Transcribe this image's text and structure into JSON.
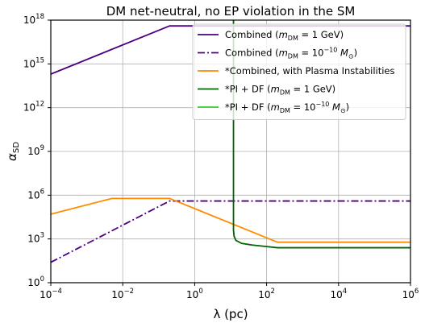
{
  "chart_data": {
    "type": "line",
    "title": "DM net-neutral, no EP violation in the SM",
    "xlabel": "λ (pc)",
    "ylabel": "α",
    "ylabel_subscript": "SD",
    "xscale": "log",
    "yscale": "log",
    "xlim": [
      0.0001,
      1000000
    ],
    "ylim": [
      1,
      1e+18
    ],
    "grid": true,
    "legend_position": "top-right",
    "x_tick_labels": [
      {
        "base": "10",
        "exp": "−4"
      },
      {
        "base": "10",
        "exp": "−2"
      },
      {
        "base": "10",
        "exp": "0"
      },
      {
        "base": "10",
        "exp": "2"
      },
      {
        "base": "10",
        "exp": "4"
      },
      {
        "base": "10",
        "exp": "6"
      }
    ],
    "y_tick_labels": [
      {
        "base": "10",
        "exp": "0"
      },
      {
        "base": "10",
        "exp": "3"
      },
      {
        "base": "10",
        "exp": "6"
      },
      {
        "base": "10",
        "exp": "9"
      },
      {
        "base": "10",
        "exp": "12"
      },
      {
        "base": "10",
        "exp": "15"
      },
      {
        "base": "10",
        "exp": "18"
      }
    ],
    "series": [
      {
        "name": "Combined (m_DM = 1 GeV)",
        "legend": {
          "pre": "Combined (",
          "mvar": "m",
          "msub": "DM",
          "post": " = 1 GeV)",
          "pow": ""
        },
        "color": "#4b0082",
        "dash": "solid",
        "points": [
          [
            0.0001,
            200000000000000.0
          ],
          [
            0.2,
            4e+17
          ],
          [
            1000000,
            4e+17
          ]
        ]
      },
      {
        "name": "Combined (m_DM = 10^-10 M_sun)",
        "legend": {
          "pre": "Combined (",
          "mvar": "m",
          "msub": "DM",
          "post": " = 10",
          "pow": "−10",
          "tail": " M",
          "tailsub": "⊙",
          "end": ")"
        },
        "color": "#4b0082",
        "dash": "dashdot",
        "points": [
          [
            0.0001,
            25
          ],
          [
            0.2,
            400000.0
          ],
          [
            1000000,
            400000.0
          ]
        ]
      },
      {
        "name": "*Combined, with Plasma Instabilities",
        "legend": {
          "pre": "*Combined, with Plasma Instabilities"
        },
        "color": "#ff8c00",
        "dash": "solid",
        "points": [
          [
            0.0001,
            50000
          ],
          [
            0.005,
            600000
          ],
          [
            0.2,
            600000
          ],
          [
            200,
            600
          ],
          [
            1000000,
            600
          ]
        ]
      },
      {
        "name": "*PI + DF (m_DM = 1 GeV)",
        "legend": {
          "pre": "*PI + DF (",
          "mvar": "m",
          "msub": "DM",
          "post": " = 1 GeV)"
        },
        "color": "#006400",
        "dash": "solid",
        "points": [
          [
            12,
            1e+18
          ],
          [
            12,
            100000000000000.0
          ],
          [
            12,
            1000000000.0
          ],
          [
            12,
            100000.0
          ],
          [
            12,
            4000
          ],
          [
            12.5,
            1500
          ],
          [
            14,
            800
          ],
          [
            20,
            500
          ],
          [
            40,
            380
          ],
          [
            100,
            300
          ],
          [
            200,
            250
          ],
          [
            1000,
            250
          ],
          [
            1000000,
            250
          ]
        ]
      },
      {
        "name": "*PI + DF (m_DM = 10^-10 M_sun)",
        "legend": {
          "pre": "*PI + DF (",
          "mvar": "m",
          "msub": "DM",
          "post": " = 10",
          "pow": "−10",
          "tail": " M",
          "tailsub": "⊙",
          "end": ")"
        },
        "color": "#32cd32",
        "dash": "solid",
        "points": []
      }
    ]
  }
}
